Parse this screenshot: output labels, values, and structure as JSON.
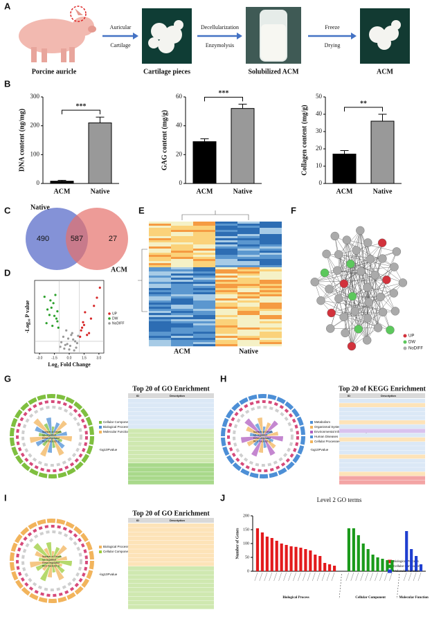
{
  "panel_labels": [
    "A",
    "B",
    "C",
    "D",
    "E",
    "F",
    "G",
    "H",
    "I",
    "J"
  ],
  "panel_a": {
    "captions": [
      "Porcine auricle",
      "Cartilage pieces",
      "Solubilized ACM",
      "ACM"
    ],
    "arrows": [
      [
        "Auricular",
        "Cartilage"
      ],
      [
        "Decellularization",
        "Enzymolysis"
      ],
      [
        "Freeze",
        "Drying"
      ]
    ]
  },
  "chart_data": [
    {
      "type": "bar",
      "ylabel": "DNA content (ng/mg)",
      "categories": [
        "ACM",
        "Native"
      ],
      "values": [
        8,
        210
      ],
      "errors": [
        3,
        20
      ],
      "colors": [
        "#000000",
        "#999999"
      ],
      "ylim": [
        0,
        300
      ],
      "yticks": [
        0,
        100,
        200,
        300
      ],
      "significance": "***"
    },
    {
      "type": "bar",
      "ylabel": "GAG content (mg/g)",
      "categories": [
        "ACM",
        "Native"
      ],
      "values": [
        29,
        52
      ],
      "errors": [
        2,
        3
      ],
      "colors": [
        "#000000",
        "#999999"
      ],
      "ylim": [
        0,
        60
      ],
      "yticks": [
        0,
        20,
        40,
        60
      ],
      "significance": "***"
    },
    {
      "type": "bar",
      "ylabel": "Collagen content (mg/g)",
      "categories": [
        "ACM",
        "Native"
      ],
      "values": [
        17,
        36
      ],
      "errors": [
        2,
        4
      ],
      "colors": [
        "#000000",
        "#999999"
      ],
      "ylim": [
        0,
        50
      ],
      "yticks": [
        0,
        10,
        20,
        30,
        40,
        50
      ],
      "significance": "**"
    },
    {
      "type": "scatter",
      "xlabel": "Log₂ Fold Change",
      "ylabel": "-Log₁₀ P value",
      "xlim": [
        -3.5,
        3.5
      ],
      "xticks": [
        {
          "value": -3,
          "label": "-3.0"
        },
        {
          "value": -1.5,
          "label": "-1.5"
        },
        {
          "value": 0,
          "label": "0.0"
        },
        {
          "value": 1.5,
          "label": "1.5"
        },
        {
          "value": 3,
          "label": "3.0"
        }
      ],
      "ylim": [
        0,
        8
      ],
      "series": [
        {
          "name": "UP",
          "color": "#d62728",
          "x": [
            1.2,
            1.5,
            1.8,
            2.2,
            1.1,
            1.6,
            2.5,
            1.3,
            2.0,
            1.4,
            3.1,
            2.8
          ],
          "y": [
            2.5,
            3.1,
            2.0,
            3.8,
            1.8,
            4.5,
            5.2,
            2.8,
            2.2,
            3.4,
            7.2,
            6.1
          ]
        },
        {
          "name": "DW",
          "color": "#2ca02c",
          "x": [
            -1.2,
            -1.5,
            -1.8,
            -2.2,
            -1.1,
            -1.6,
            -2.5,
            -1.3,
            -2.0,
            -1.4,
            -1.7,
            -1.9,
            -1.2,
            -2.3
          ],
          "y": [
            3.5,
            4.1,
            5.0,
            4.8,
            2.8,
            5.5,
            6.2,
            3.8,
            4.2,
            6.4,
            3.0,
            5.8,
            4.6,
            3.3
          ]
        },
        {
          "name": "NoDIFF",
          "color": "#999999",
          "x": [
            -0.5,
            -0.2,
            0.1,
            0.4,
            0.7,
            -0.8,
            0.2,
            -0.3,
            0.5,
            -0.6,
            0.8,
            0.0,
            -0.1,
            0.3,
            -0.4,
            0.6,
            -0.9,
            0.9
          ],
          "y": [
            0.5,
            1.0,
            0.8,
            1.5,
            0.6,
            1.2,
            2.0,
            2.5,
            0.3,
            1.8,
            1.1,
            0.4,
            1.6,
            2.2,
            0.9,
            1.3,
            0.7,
            1.9
          ]
        }
      ]
    },
    {
      "type": "bar",
      "title": "Level 2  GO terms",
      "ylabel": "Number of Genes",
      "ylim": [
        0,
        200
      ],
      "yticks": [
        0,
        50,
        100,
        150,
        200
      ],
      "series": [
        {
          "name": "Biological Process",
          "color": "#e31a1c",
          "values": [
            155,
            140,
            125,
            120,
            110,
            100,
            95,
            90,
            88,
            85,
            80,
            75,
            60,
            55,
            30,
            25,
            20
          ]
        },
        {
          "name": "Cellular Component",
          "color": "#1a9a1a",
          "values": [
            155,
            155,
            130,
            100,
            80,
            60,
            50,
            45,
            40,
            40
          ]
        },
        {
          "name": "Molecular Function",
          "color": "#1f3fd0",
          "values": [
            145,
            80,
            55,
            25
          ]
        }
      ]
    }
  ],
  "panel_c": {
    "sets": [
      "Native",
      "ACM"
    ],
    "counts": [
      "490",
      "587",
      "27"
    ]
  },
  "panel_e": {
    "groups": [
      "ACM",
      "Native"
    ]
  },
  "panel_f": {
    "legend": [
      {
        "name": "UP",
        "color": "#d2323c"
      },
      {
        "name": "DW",
        "color": "#5cc85c"
      },
      {
        "name": "NoDIFF",
        "color": "#aaaaaa"
      }
    ]
  },
  "panel_g": {
    "title": "Top 20 of GO Enrichment",
    "table_header": [
      "ID",
      "Description"
    ],
    "categories": [
      "Cellular Component",
      "Biological Process",
      "Molecular Function"
    ],
    "inner_legend": [
      "Number of Genes",
      "Up-regulated",
      "Down-regulated",
      "Rich Factor(0-1)"
    ],
    "scale_title": "-log10Pvalue"
  },
  "panel_h": {
    "title": "Top 20 of KEGG Enrichment",
    "table_header": [
      "ID",
      "Description"
    ],
    "categories": [
      "Metabolism",
      "Organismal Systems",
      "Environmental Information Processing",
      "Human Diseases",
      "Cellular Processes"
    ],
    "inner_legend": [
      "Number of Genes",
      "Up-regulated",
      "Down-regulated",
      "Rich Factor(0-1)"
    ],
    "scale_title": "-log10Pvalue"
  },
  "panel_i": {
    "title": "Top 20 of GO Enrichment",
    "table_header": [
      "ID",
      "Description"
    ],
    "categories": [
      "Biological Process",
      "Cellular Component"
    ],
    "inner_legend": [
      "Number of Genes",
      "Up-regulated",
      "Down-regulated",
      "Rich Factor(0-1)"
    ],
    "scale_title": "-log10Pvalue"
  }
}
